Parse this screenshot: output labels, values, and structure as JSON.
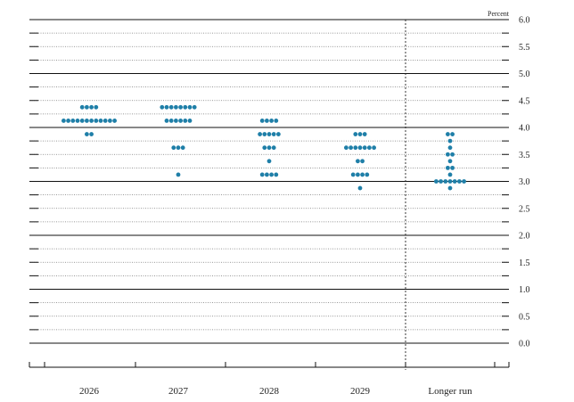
{
  "chart_data": {
    "type": "scatter",
    "unit_label": "Percent",
    "ylim": [
      0.0,
      6.0
    ],
    "y_ticks": [
      "6.0",
      "5.5",
      "5.0",
      "4.5",
      "4.0",
      "3.5",
      "3.0",
      "2.5",
      "2.0",
      "1.5",
      "1.0",
      "0.5",
      "0.0"
    ],
    "categories": [
      "2026",
      "2027",
      "2028",
      "2029",
      "Longer run"
    ],
    "dot_color": "#1f7fa8",
    "grid": "dotted minor lines, solid major lines at 0.0, 1.0, 2.0, 3.0, 4.0, 5.0",
    "dots": [
      {
        "category": "2026",
        "rates": [
          {
            "y": 4.375,
            "count": 4
          },
          {
            "y": 4.125,
            "count": 12
          },
          {
            "y": 3.875,
            "count": 2
          }
        ]
      },
      {
        "category": "2027",
        "rates": [
          {
            "y": 4.375,
            "count": 8
          },
          {
            "y": 4.125,
            "count": 6
          },
          {
            "y": 3.625,
            "count": 3
          },
          {
            "y": 3.125,
            "count": 1
          }
        ]
      },
      {
        "category": "2028",
        "rates": [
          {
            "y": 4.125,
            "count": 4
          },
          {
            "y": 3.875,
            "count": 5
          },
          {
            "y": 3.625,
            "count": 3
          },
          {
            "y": 3.375,
            "count": 1
          },
          {
            "y": 3.125,
            "count": 4
          }
        ]
      },
      {
        "category": "2029",
        "rates": [
          {
            "y": 3.875,
            "count": 3
          },
          {
            "y": 3.625,
            "count": 7
          },
          {
            "y": 3.375,
            "count": 2
          },
          {
            "y": 3.125,
            "count": 4
          },
          {
            "y": 2.875,
            "count": 1
          }
        ]
      },
      {
        "category": "Longer run",
        "rates": [
          {
            "y": 3.875,
            "count": 2
          },
          {
            "y": 3.75,
            "count": 1
          },
          {
            "y": 3.625,
            "count": 1
          },
          {
            "y": 3.5,
            "count": 2
          },
          {
            "y": 3.375,
            "count": 1
          },
          {
            "y": 3.25,
            "count": 2
          },
          {
            "y": 3.125,
            "count": 1
          },
          {
            "y": 3.0,
            "count": 7
          },
          {
            "y": 2.875,
            "count": 1
          }
        ]
      }
    ]
  }
}
